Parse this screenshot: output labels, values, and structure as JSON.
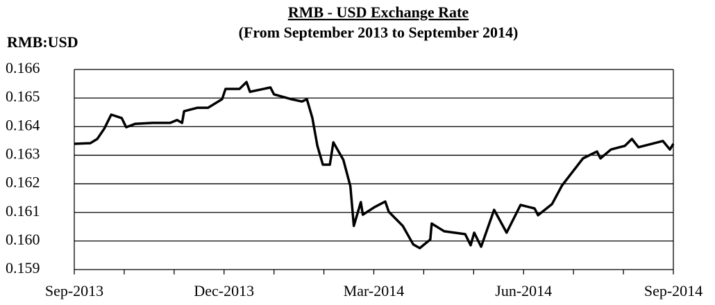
{
  "chart_data": {
    "type": "line",
    "title": "RMB - USD Exchange Rate",
    "subtitle": "(From September 2013 to September 2014)",
    "y_label": "RMB:USD",
    "x": [
      0,
      0.32,
      0.46,
      0.6,
      0.74,
      0.95,
      1.04,
      1.22,
      1.57,
      1.92,
      2.06,
      2.16,
      2.2,
      2.47,
      2.68,
      2.96,
      3.03,
      3.31,
      3.45,
      3.52,
      3.93,
      4.0,
      4.35,
      4.56,
      4.66,
      4.77,
      4.87,
      4.98,
      5.12,
      5.19,
      5.39,
      5.53,
      5.6,
      5.74,
      5.78,
      6.02,
      6.23,
      6.3,
      6.58,
      6.79,
      6.92,
      7.13,
      7.16,
      7.41,
      7.83,
      7.94,
      8.01,
      8.15,
      8.41,
      8.66,
      8.94,
      9.22,
      9.29,
      9.57,
      9.77,
      9.91,
      10.19,
      10.47,
      10.54,
      10.75,
      11.03,
      11.17,
      11.3,
      11.79,
      11.93,
      12.0
    ],
    "series": [
      {
        "name": "RMB:USD",
        "color": "#000000",
        "values": [
          0.1634,
          0.16342,
          0.16357,
          0.16393,
          0.16442,
          0.1643,
          0.16398,
          0.1641,
          0.16413,
          0.16413,
          0.16423,
          0.16413,
          0.16454,
          0.16466,
          0.16466,
          0.16496,
          0.16532,
          0.16532,
          0.16556,
          0.16522,
          0.16537,
          0.16513,
          0.16496,
          0.16488,
          0.16496,
          0.1643,
          0.16333,
          0.16267,
          0.16267,
          0.16345,
          0.16284,
          0.16192,
          0.16053,
          0.16136,
          0.16092,
          0.16119,
          0.16138,
          0.16102,
          0.16053,
          0.15988,
          0.15975,
          0.16005,
          0.16061,
          0.16034,
          0.16024,
          0.15985,
          0.16029,
          0.1598,
          0.16109,
          0.16029,
          0.16126,
          0.16114,
          0.1609,
          0.16129,
          0.16194,
          0.16226,
          0.16289,
          0.16313,
          0.16289,
          0.1632,
          0.16333,
          0.16357,
          0.16328,
          0.1635,
          0.1632,
          0.1634
        ]
      }
    ],
    "xlim": [
      0,
      12
    ],
    "xticks": [
      {
        "value": 0,
        "label": "Sep-2013"
      },
      {
        "value": 3,
        "label": "Dec-2013"
      },
      {
        "value": 6,
        "label": "Mar-2014"
      },
      {
        "value": 9,
        "label": "Jun-2014"
      },
      {
        "value": 12,
        "label": "Sep-2014"
      }
    ],
    "xminorticks": [
      1,
      2,
      4,
      5,
      7,
      8,
      10,
      11
    ],
    "ylim": [
      0.159,
      0.166
    ],
    "yticks": [
      {
        "value": 0.159,
        "label": "0.159"
      },
      {
        "value": 0.16,
        "label": "0.160"
      },
      {
        "value": 0.161,
        "label": "0.161"
      },
      {
        "value": 0.162,
        "label": "0.162"
      },
      {
        "value": 0.163,
        "label": "0.163"
      },
      {
        "value": 0.164,
        "label": "0.164"
      },
      {
        "value": 0.165,
        "label": "0.165"
      },
      {
        "value": 0.166,
        "label": "0.166"
      }
    ],
    "grid": true
  }
}
